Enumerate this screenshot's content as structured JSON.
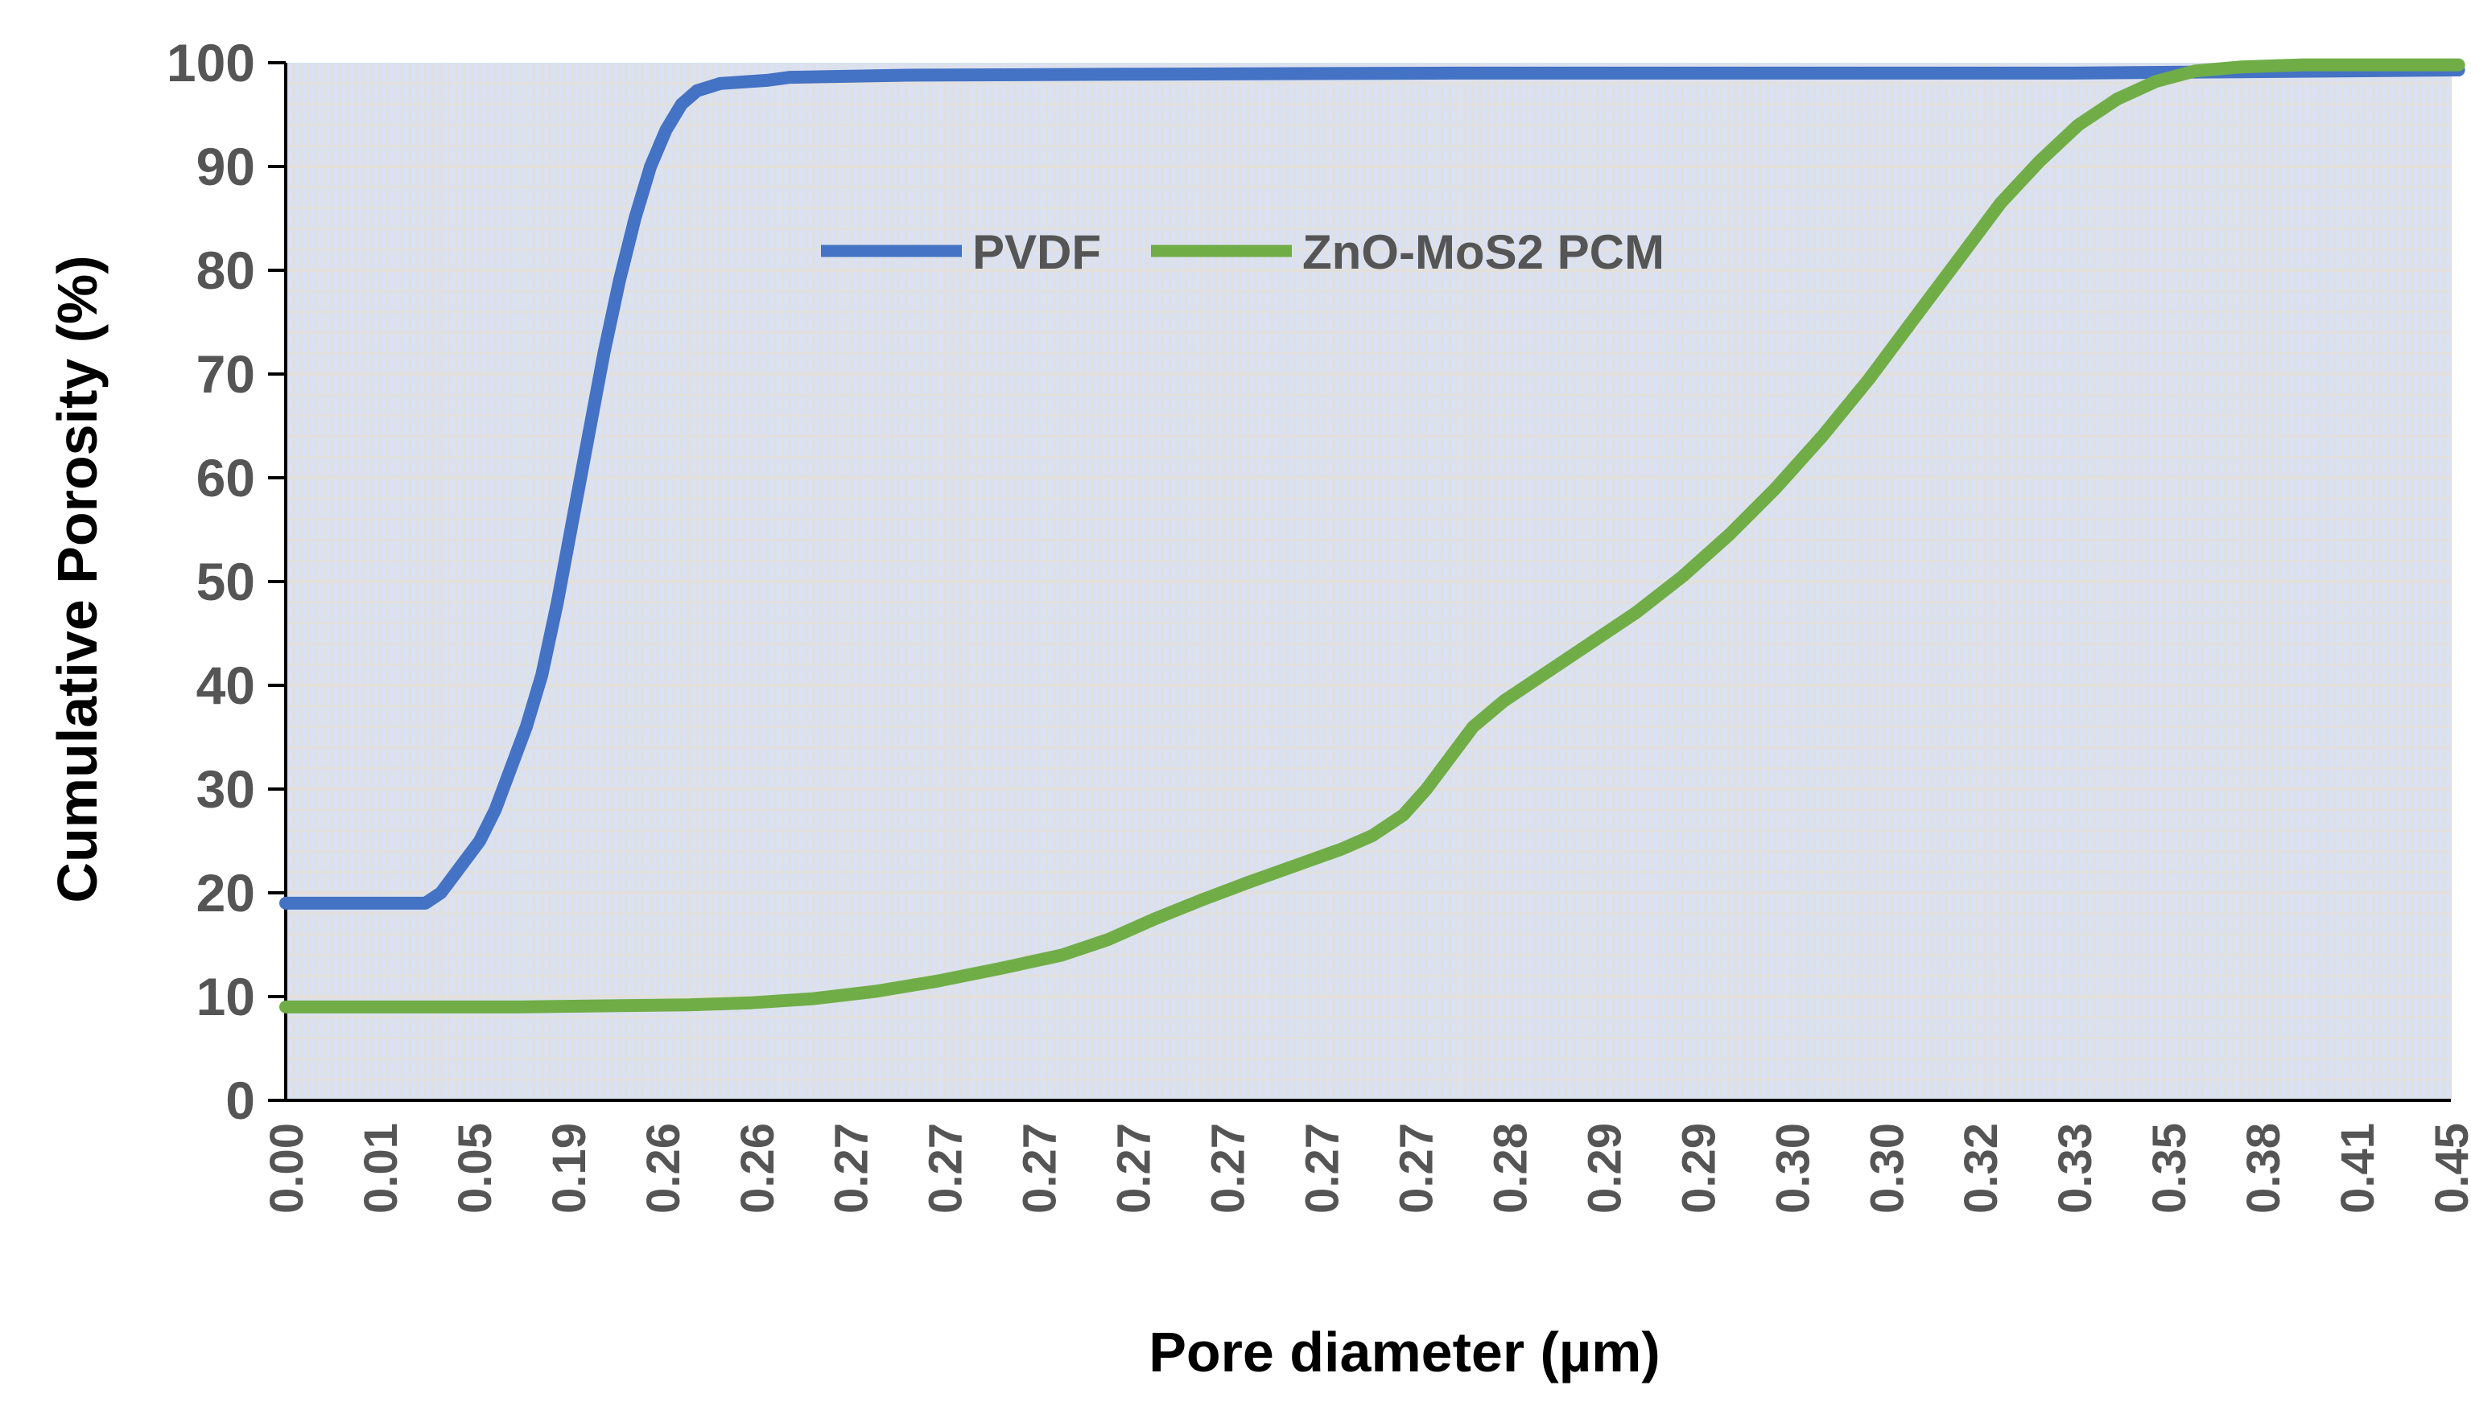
{
  "chart_data": {
    "type": "line",
    "title": "",
    "xlabel": "Pore diameter (µm)",
    "ylabel": "Cumulative Porosity (%)",
    "ylim": [
      0,
      100
    ],
    "yticks": [
      "0",
      "10",
      "20",
      "30",
      "40",
      "50",
      "60",
      "70",
      "80",
      "90",
      "100"
    ],
    "x_category_count": 280,
    "categories": [
      "0.00",
      "0.01",
      "0.05",
      "0.19",
      "0.26",
      "0.26",
      "0.27",
      "0.27",
      "0.27",
      "0.27",
      "0.27",
      "0.27",
      "0.27",
      "0.28",
      "0.29",
      "0.29",
      "0.30",
      "0.30",
      "0.32",
      "0.33",
      "0.35",
      "0.38",
      "0.41",
      "0.45"
    ],
    "legend_position": "upper-center",
    "grid": true,
    "colors": {
      "plot_background": "#d9e1f2",
      "grid": "#e3e0db",
      "axis": "#000000"
    },
    "series": [
      {
        "name": "PVDF",
        "color": "#4472c4",
        "points": [
          [
            0,
            19
          ],
          [
            18,
            19
          ],
          [
            20,
            20
          ],
          [
            22,
            22
          ],
          [
            25,
            25
          ],
          [
            27,
            28
          ],
          [
            29,
            32
          ],
          [
            31,
            36
          ],
          [
            33,
            41
          ],
          [
            35,
            48
          ],
          [
            37,
            56
          ],
          [
            39,
            64
          ],
          [
            41,
            72
          ],
          [
            43,
            79
          ],
          [
            45,
            85
          ],
          [
            47,
            90
          ],
          [
            49,
            93.5
          ],
          [
            51,
            96
          ],
          [
            53,
            97.3
          ],
          [
            56,
            98
          ],
          [
            62,
            98.3
          ],
          [
            65,
            98.6
          ],
          [
            80,
            98.8
          ],
          [
            110,
            98.9
          ],
          [
            150,
            99
          ],
          [
            230,
            99
          ],
          [
            280,
            99.3
          ]
        ]
      },
      {
        "name": "ZnO-MoS2 PCM",
        "color": "#70ad47",
        "points": [
          [
            0,
            9
          ],
          [
            30,
            9
          ],
          [
            40,
            9.1
          ],
          [
            52,
            9.2
          ],
          [
            60,
            9.4
          ],
          [
            68,
            9.8
          ],
          [
            76,
            10.5
          ],
          [
            84,
            11.5
          ],
          [
            92,
            12.7
          ],
          [
            100,
            14
          ],
          [
            106,
            15.5
          ],
          [
            112,
            17.5
          ],
          [
            118,
            19.3
          ],
          [
            124,
            21
          ],
          [
            130,
            22.6
          ],
          [
            136,
            24.2
          ],
          [
            140,
            25.5
          ],
          [
            144,
            27.5
          ],
          [
            147,
            30
          ],
          [
            150,
            33
          ],
          [
            153,
            36
          ],
          [
            157,
            38.5
          ],
          [
            162,
            41
          ],
          [
            168,
            44
          ],
          [
            174,
            47
          ],
          [
            180,
            50.5
          ],
          [
            186,
            54.5
          ],
          [
            192,
            59
          ],
          [
            198,
            64
          ],
          [
            204,
            69.5
          ],
          [
            210,
            75.5
          ],
          [
            216,
            81.5
          ],
          [
            221,
            86.5
          ],
          [
            226,
            90.5
          ],
          [
            231,
            94
          ],
          [
            236,
            96.5
          ],
          [
            241,
            98.2
          ],
          [
            246,
            99.2
          ],
          [
            252,
            99.6
          ],
          [
            260,
            99.8
          ],
          [
            280,
            99.8
          ]
        ]
      }
    ]
  }
}
